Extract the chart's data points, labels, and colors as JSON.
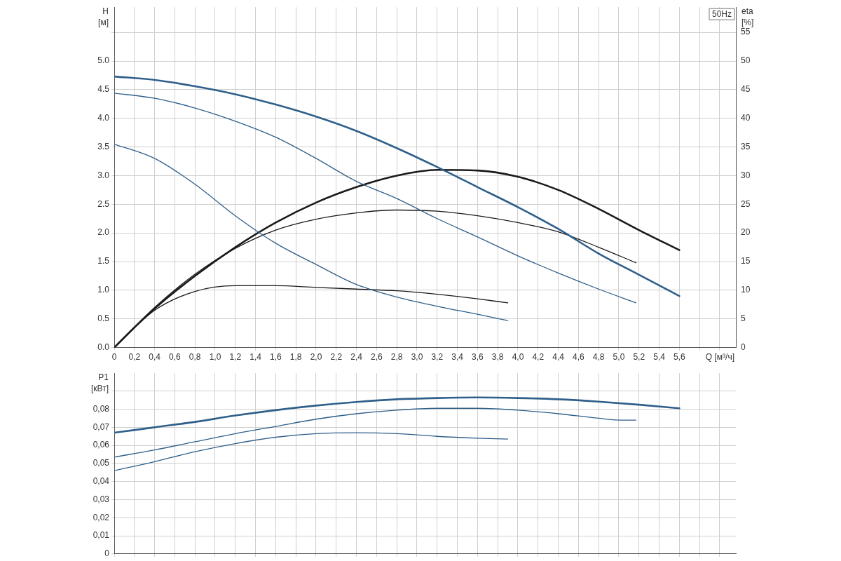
{
  "chart_data": [
    {
      "type": "line",
      "ylabel": "H\n[м]",
      "y2label": "eta\n[%]",
      "xlabel": "Q [м³/ч]",
      "annotations": [
        "50Hz"
      ],
      "grid": true,
      "legend": false,
      "marker": "none",
      "line_style": "solid",
      "xlim": [
        0,
        6.16
      ],
      "xticks": [
        0,
        {
          "value": 0.2,
          "label": "0,2"
        },
        {
          "value": 0.4,
          "label": "0,4"
        },
        {
          "value": 0.6,
          "label": "0,6"
        },
        {
          "value": 0.8,
          "label": "0,8"
        },
        {
          "value": 1.0,
          "label": "1,0"
        },
        {
          "value": 1.2,
          "label": "1,2"
        },
        {
          "value": 1.4,
          "label": "1,4"
        },
        {
          "value": 1.6,
          "label": "1,6"
        },
        {
          "value": 1.8,
          "label": "1,8"
        },
        {
          "value": 2.0,
          "label": "2,0"
        },
        {
          "value": 2.2,
          "label": "2,2"
        },
        {
          "value": 2.4,
          "label": "2,4"
        },
        {
          "value": 2.6,
          "label": "2,6"
        },
        {
          "value": 2.8,
          "label": "2,8"
        },
        {
          "value": 3.0,
          "label": "3,0"
        },
        {
          "value": 3.2,
          "label": "3,2"
        },
        {
          "value": 3.4,
          "label": "3,4"
        },
        {
          "value": 3.6,
          "label": "3,6"
        },
        {
          "value": 3.8,
          "label": "3,8"
        },
        {
          "value": 4.0,
          "label": "4,0"
        },
        {
          "value": 4.2,
          "label": "4,2"
        },
        {
          "value": 4.4,
          "label": "4,4"
        },
        {
          "value": 4.6,
          "label": "4,6"
        },
        {
          "value": 4.8,
          "label": "4,8"
        },
        {
          "value": 5.0,
          "label": "5,0"
        },
        {
          "value": 5.2,
          "label": "5,2"
        },
        {
          "value": 5.4,
          "label": "5,4"
        },
        {
          "value": 5.6,
          "label": "5,6"
        },
        {
          "value": 5.8,
          "label": null
        },
        {
          "value": 6.0,
          "label": null
        }
      ],
      "ylim": [
        0,
        5.94
      ],
      "yticks": [
        {
          "value": 0,
          "label": "0.0"
        },
        {
          "value": 0.5,
          "label": "0.5"
        },
        {
          "value": 1,
          "label": "1.0"
        },
        {
          "value": 1.5,
          "label": "1.5"
        },
        {
          "value": 2,
          "label": "2.0"
        },
        {
          "value": 2.5,
          "label": "2.5"
        },
        {
          "value": 3,
          "label": "3.0"
        },
        {
          "value": 3.5,
          "label": "3.5"
        },
        {
          "value": 4,
          "label": "4.0"
        },
        {
          "value": 4.5,
          "label": "4.5"
        },
        {
          "value": 5,
          "label": "5.0"
        },
        {
          "value": 5.5,
          "label": null
        }
      ],
      "y2lim": [
        0,
        59.4
      ],
      "y2ticks": [
        0,
        5,
        10,
        15,
        20,
        25,
        30,
        35,
        40,
        45,
        50,
        55
      ],
      "series": [
        {
          "color": "#2f5f8a",
          "x": [
            0,
            0.4,
            0.8,
            1.2,
            1.6,
            2.0,
            2.4,
            2.8,
            3.2,
            3.6,
            4.0,
            4.4,
            4.8,
            5.2,
            5.6
          ],
          "values": [
            4.73,
            4.67,
            4.56,
            4.42,
            4.24,
            4.03,
            3.78,
            3.48,
            3.15,
            2.8,
            2.45,
            2.07,
            1.64,
            1.27,
            0.9
          ]
        },
        {
          "color": "#2f5f8a",
          "x": [
            0,
            0.4,
            0.8,
            1.2,
            1.6,
            2.0,
            2.4,
            2.8,
            3.2,
            3.6,
            4.0,
            4.4,
            4.8,
            5.17
          ],
          "values": [
            4.44,
            4.35,
            4.18,
            3.95,
            3.67,
            3.3,
            2.9,
            2.6,
            2.25,
            1.93,
            1.6,
            1.3,
            1.02,
            0.78
          ]
        },
        {
          "color": "#2f5f8a",
          "x": [
            0,
            0.4,
            0.8,
            1.2,
            1.6,
            2.0,
            2.4,
            2.8,
            3.2,
            3.6,
            3.9
          ],
          "values": [
            3.55,
            3.3,
            2.85,
            2.3,
            1.82,
            1.45,
            1.1,
            0.88,
            0.72,
            0.58,
            0.47
          ]
        },
        {
          "color": "#1a1a1a",
          "axis": "y2",
          "x": [
            0,
            0.2,
            0.4,
            0.8,
            1.2,
            1.6,
            2.0,
            2.4,
            2.8,
            3.2,
            3.6,
            4.0,
            4.4,
            4.8,
            5.2,
            5.6
          ],
          "values": [
            0,
            3.5,
            6.8,
            12.5,
            17.5,
            21.8,
            25.3,
            28,
            30,
            31,
            30.9,
            29.8,
            27.5,
            24.2,
            20.5,
            17
          ]
        },
        {
          "color": "#1a1a1a",
          "axis": "y2",
          "x": [
            0,
            0.4,
            0.8,
            1.2,
            1.6,
            2.0,
            2.4,
            2.8,
            3.2,
            3.6,
            4.0,
            4.4,
            4.8,
            5.17
          ],
          "values": [
            0,
            7,
            12.8,
            17.3,
            20.5,
            22.4,
            23.5,
            24,
            23.8,
            23,
            21.8,
            20.2,
            17.5,
            14.8
          ]
        },
        {
          "color": "#1a1a1a",
          "axis": "y2",
          "x": [
            0,
            0.4,
            0.8,
            1.2,
            1.6,
            2.0,
            2.4,
            2.8,
            3.2,
            3.6,
            3.9
          ],
          "values": [
            0,
            6.5,
            9.8,
            10.8,
            10.8,
            10.5,
            10.2,
            9.9,
            9.3,
            8.5,
            7.8
          ]
        }
      ]
    },
    {
      "type": "line",
      "ylabel": "P1\n[кВт]",
      "grid": true,
      "legend": false,
      "marker": "none",
      "line_style": "solid",
      "tick_labels": "y",
      "xlim": [
        0,
        6.16
      ],
      "xticks": [
        0,
        0.2,
        0.4,
        0.6,
        0.8,
        1.0,
        1.2,
        1.4,
        1.6,
        1.8,
        2.0,
        2.2,
        2.4,
        2.6,
        2.8,
        3.0,
        3.2,
        3.4,
        3.6,
        3.8,
        4.0,
        4.2,
        4.4,
        4.6,
        4.8,
        5.0,
        5.2,
        5.4,
        5.6,
        5.8,
        6.0
      ],
      "ylim": [
        0,
        0.1
      ],
      "yticks": [
        0,
        {
          "value": 0.01,
          "label": "0,01"
        },
        {
          "value": 0.02,
          "label": "0,02"
        },
        {
          "value": 0.03,
          "label": "0,03"
        },
        {
          "value": 0.04,
          "label": "0,04"
        },
        {
          "value": 0.05,
          "label": "0,05"
        },
        {
          "value": 0.06,
          "label": "0,06"
        },
        {
          "value": 0.07,
          "label": "0,07"
        },
        {
          "value": 0.08,
          "label": "0,08"
        },
        {
          "value": 0.09,
          "label": null
        }
      ],
      "series": [
        {
          "color": "#2f5f8a",
          "x": [
            0,
            0.4,
            0.8,
            1.2,
            1.6,
            2.0,
            2.4,
            2.8,
            3.2,
            3.6,
            4.0,
            4.4,
            4.8,
            5.2,
            5.6
          ],
          "values": [
            0.067,
            0.07,
            0.073,
            0.0765,
            0.0795,
            0.082,
            0.084,
            0.0855,
            0.0862,
            0.0865,
            0.0862,
            0.0855,
            0.0842,
            0.0825,
            0.0805
          ]
        },
        {
          "color": "#2f5f8a",
          "x": [
            0,
            0.4,
            0.8,
            1.2,
            1.6,
            2.0,
            2.4,
            2.8,
            3.2,
            3.6,
            4.0,
            4.4,
            4.8,
            5.0,
            5.17
          ],
          "values": [
            0.0535,
            0.0575,
            0.062,
            0.0665,
            0.0705,
            0.0745,
            0.0775,
            0.0795,
            0.0805,
            0.0805,
            0.0795,
            0.0775,
            0.075,
            0.074,
            0.074
          ]
        },
        {
          "color": "#2f5f8a",
          "x": [
            0,
            0.4,
            0.8,
            1.2,
            1.6,
            2.0,
            2.4,
            2.8,
            3.2,
            3.6,
            3.9
          ],
          "values": [
            0.046,
            0.051,
            0.0565,
            0.061,
            0.0645,
            0.0665,
            0.067,
            0.0665,
            0.065,
            0.064,
            0.0635
          ]
        }
      ]
    }
  ]
}
